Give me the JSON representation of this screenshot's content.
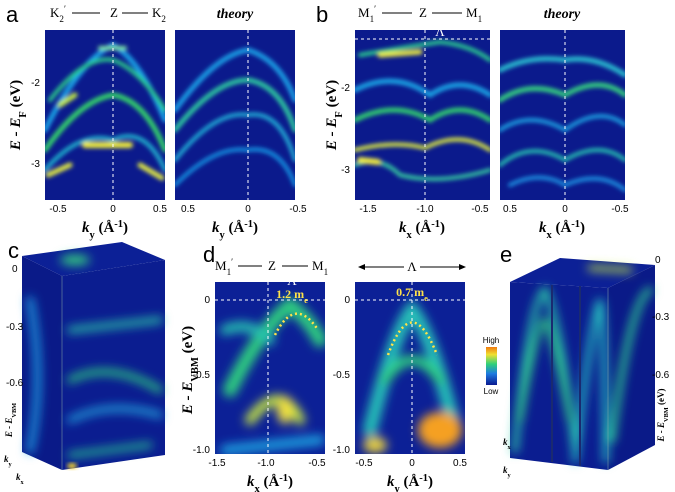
{
  "panel_a": {
    "letter": "a",
    "top_left": [
      {
        "t": "K"
      },
      {
        "t": "2",
        "s": "sub"
      },
      {
        "t": "′",
        "s": "sup"
      }
    ],
    "top_mid": "Z",
    "top_right": [
      {
        "t": "K"
      },
      {
        "t": "2",
        "s": "sub"
      }
    ],
    "theory": "theory",
    "ylabel": [
      {
        "t": "E - E"
      },
      {
        "t": "F",
        "s": "sub"
      },
      {
        "t": " (eV)"
      }
    ],
    "yticks": [
      "-2",
      "-3"
    ],
    "xticks_exp": [
      "-0.5",
      "0",
      "0.5"
    ],
    "xticks_theory": [
      "0.5",
      "0",
      "-0.5"
    ],
    "xlabel": [
      {
        "t": "k"
      },
      {
        "t": "y",
        "s": "sub"
      },
      {
        "t": " (Å"
      },
      {
        "t": "-1",
        "s": "sup"
      },
      {
        "t": ")"
      }
    ]
  },
  "panel_b": {
    "letter": "b",
    "top_left": [
      {
        "t": "M"
      },
      {
        "t": "1",
        "s": "sub"
      },
      {
        "t": "′",
        "s": "sup"
      }
    ],
    "top_mid": "Z",
    "top_right": [
      {
        "t": "M"
      },
      {
        "t": "1",
        "s": "sub"
      }
    ],
    "lambda": "Λ",
    "theory": "theory",
    "ylabel": [
      {
        "t": "E - E"
      },
      {
        "t": "F",
        "s": "sub"
      },
      {
        "t": " (eV)"
      }
    ],
    "yticks": [
      "-2",
      "-3"
    ],
    "xticks_exp": [
      "-1.5",
      "-1.0",
      "-0.5"
    ],
    "xticks_theory": [
      "0.5",
      "0",
      "-0.5"
    ],
    "xlabel": [
      {
        "t": "k"
      },
      {
        "t": "x",
        "s": "sub"
      },
      {
        "t": " (Å"
      },
      {
        "t": "-1",
        "s": "sup"
      },
      {
        "t": ")"
      }
    ]
  },
  "panel_c": {
    "letter": "c",
    "yticks": [
      "0",
      "-0.3",
      "-0.6"
    ],
    "ylabel": [
      {
        "t": "E - E"
      },
      {
        "t": "VBM",
        "s": "sub"
      }
    ],
    "kx": [
      {
        "t": "k"
      },
      {
        "t": "x",
        "s": "sub"
      }
    ],
    "ky": [
      {
        "t": "k"
      },
      {
        "t": "y",
        "s": "sub"
      }
    ]
  },
  "panel_d": {
    "letter": "d",
    "top_left": [
      {
        "t": "M"
      },
      {
        "t": "1",
        "s": "sub"
      },
      {
        "t": "′",
        "s": "sup"
      }
    ],
    "top_mid": "Z",
    "top_right": [
      {
        "t": "M"
      },
      {
        "t": "1",
        "s": "sub"
      }
    ],
    "lambda": "Λ",
    "mass_left": [
      {
        "t": "1.2 m"
      },
      {
        "t": "e",
        "s": "sub"
      }
    ],
    "arrow_label": "Λ",
    "mass_right": [
      {
        "t": "0.7 m"
      },
      {
        "t": "e",
        "s": "sub"
      }
    ],
    "ylabel": [
      {
        "t": "E - E"
      },
      {
        "t": "VBM",
        "s": "sub"
      },
      {
        "t": " (eV)"
      }
    ],
    "yticks": [
      "0",
      "-0.5",
      "-1.0"
    ],
    "xticks_left": [
      "-1.5",
      "-1.0",
      "-0.5"
    ],
    "xticks_right": [
      "-0.5",
      "0",
      "0.5"
    ],
    "xlabel_left": [
      {
        "t": "k"
      },
      {
        "t": "x",
        "s": "sub"
      },
      {
        "t": " (Å"
      },
      {
        "t": "-1",
        "s": "sup"
      },
      {
        "t": ")"
      }
    ],
    "xlabel_right": [
      {
        "t": "k"
      },
      {
        "t": "y",
        "s": "sub"
      },
      {
        "t": " (Å"
      },
      {
        "t": "-1",
        "s": "sup"
      },
      {
        "t": ")"
      }
    ],
    "colorbar_high": "High",
    "colorbar_low": "Low"
  },
  "panel_e": {
    "letter": "e",
    "yticks": [
      "0",
      "-0.3",
      "-0.6"
    ],
    "ylabel": [
      {
        "t": "E - E"
      },
      {
        "t": "VBM",
        "s": "sub"
      },
      {
        "t": " (eV)"
      }
    ],
    "kx": [
      {
        "t": "k"
      },
      {
        "t": "x",
        "s": "sub"
      }
    ],
    "ky": [
      {
        "t": "k"
      },
      {
        "t": "y",
        "s": "sub"
      }
    ]
  }
}
